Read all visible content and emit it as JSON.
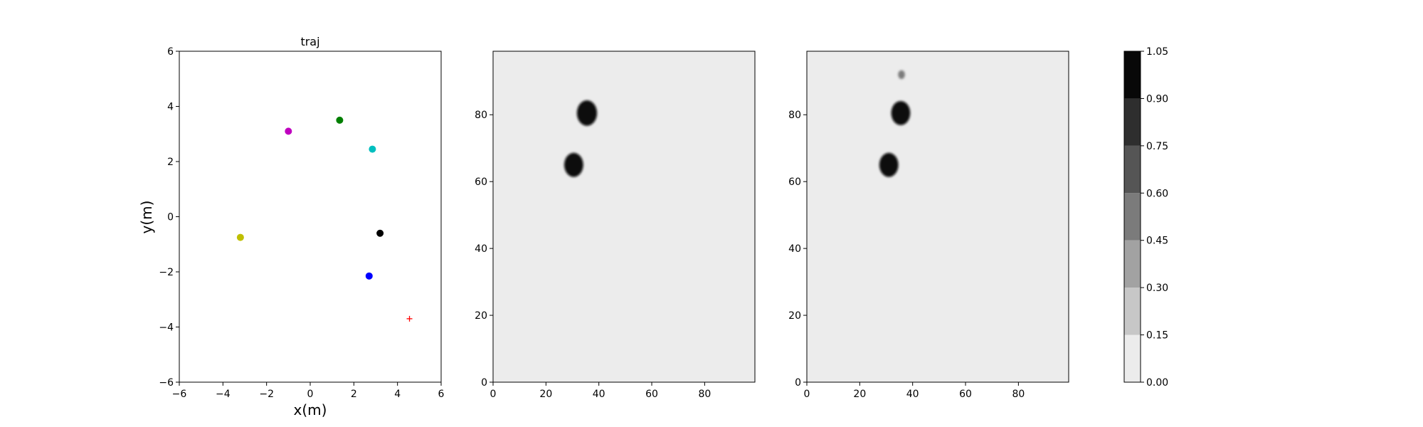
{
  "chart_data": [
    {
      "type": "scatter",
      "title": "traj",
      "xlabel": "x(m)",
      "ylabel": "y(m)",
      "xlim": [
        -6,
        6
      ],
      "ylim": [
        -6,
        6
      ],
      "xticks": [
        "−6",
        "−4",
        "−2",
        "0",
        "2",
        "4",
        "6"
      ],
      "yticks": [
        "−6",
        "−4",
        "−2",
        "0",
        "2",
        "4",
        "6"
      ],
      "grid": false,
      "points": [
        {
          "x": -1.0,
          "y": 3.1,
          "color": "#bf00bf",
          "marker": "circle"
        },
        {
          "x": 1.35,
          "y": 3.5,
          "color": "#007f00",
          "marker": "circle"
        },
        {
          "x": 2.85,
          "y": 2.45,
          "color": "#00bfbf",
          "marker": "circle"
        },
        {
          "x": -3.2,
          "y": -0.75,
          "color": "#bfbf00",
          "marker": "circle"
        },
        {
          "x": 3.2,
          "y": -0.6,
          "color": "#000000",
          "marker": "circle"
        },
        {
          "x": 2.7,
          "y": -2.15,
          "color": "#0000ff",
          "marker": "circle"
        },
        {
          "x": 4.55,
          "y": -3.7,
          "color": "#ff0000",
          "marker": "plus"
        }
      ]
    },
    {
      "type": "heatmap",
      "title": "",
      "xlabel": "",
      "ylabel": "",
      "xlim": [
        0,
        99
      ],
      "ylim": [
        0,
        99
      ],
      "xticks": [
        "0",
        "20",
        "40",
        "60",
        "80"
      ],
      "yticks": [
        "0",
        "20",
        "40",
        "60",
        "80"
      ],
      "background_level": 0.07,
      "blobs": [
        {
          "cx": 35.5,
          "cy": 80.5,
          "r": 3.8,
          "value": 1.0
        },
        {
          "cx": 30.5,
          "cy": 65.0,
          "r": 3.6,
          "value": 1.0
        }
      ]
    },
    {
      "type": "heatmap",
      "title": "",
      "xlabel": "",
      "ylabel": "",
      "xlim": [
        0,
        99
      ],
      "ylim": [
        0,
        99
      ],
      "xticks": [
        "0",
        "20",
        "40",
        "60",
        "80"
      ],
      "yticks": [
        "0",
        "20",
        "40",
        "60",
        "80"
      ],
      "background_level": 0.07,
      "blobs": [
        {
          "cx": 35.5,
          "cy": 80.5,
          "r": 3.6,
          "value": 1.0
        },
        {
          "cx": 31.0,
          "cy": 65.0,
          "r": 3.6,
          "value": 1.0
        },
        {
          "cx": 35.8,
          "cy": 92.0,
          "r": 1.3,
          "value": 0.55
        }
      ]
    }
  ],
  "colorbar": {
    "levels": [
      0.0,
      0.15,
      0.3,
      0.45,
      0.6,
      0.75,
      0.9,
      1.05
    ],
    "tick_labels": [
      "0.00",
      "0.15",
      "0.30",
      "0.45",
      "0.60",
      "0.75",
      "0.90",
      "1.05"
    ],
    "colors": [
      "#ececec",
      "#c7c7c7",
      "#a2a2a2",
      "#7b7b7b",
      "#555555",
      "#2e2e2e",
      "#080808"
    ]
  }
}
